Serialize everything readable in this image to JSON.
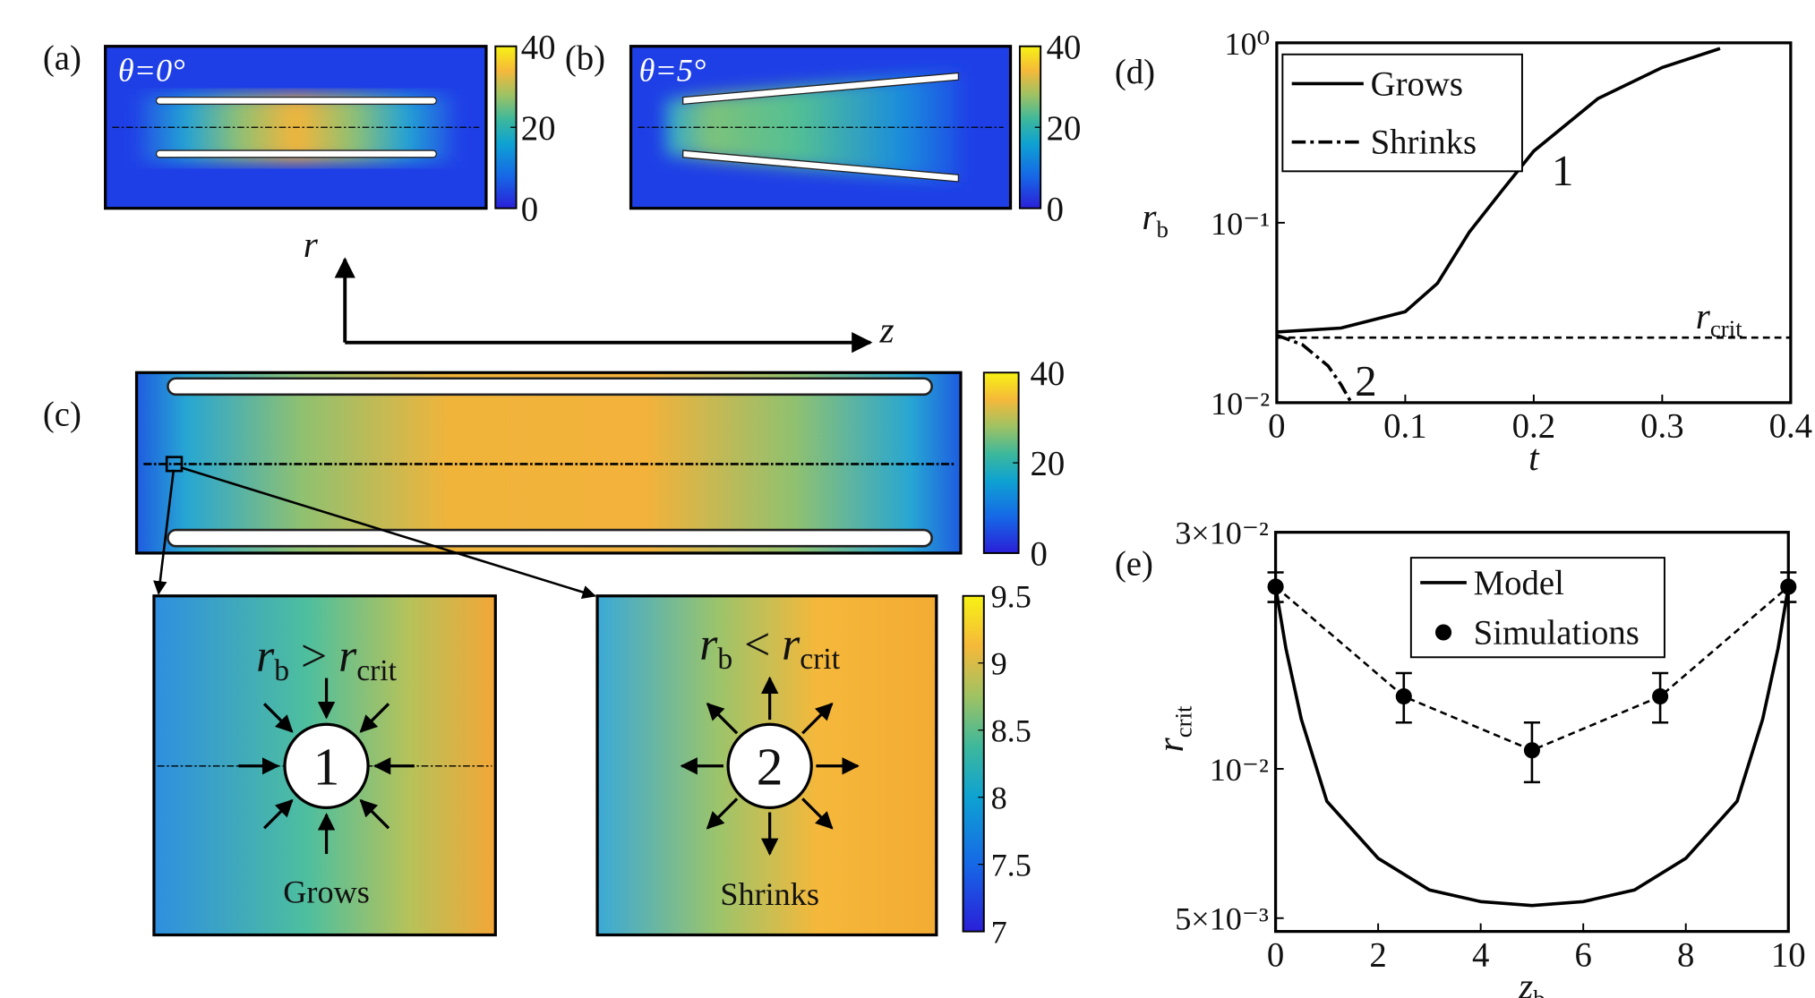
{
  "panels": {
    "a": {
      "label": "(a)",
      "angle": "θ=0°",
      "colorbar_lim": [
        0,
        40
      ],
      "colorbar_ticks": [
        0,
        20,
        40
      ]
    },
    "b": {
      "label": "(b)",
      "angle": "θ=5°",
      "colorbar_lim": [
        0,
        40
      ],
      "colorbar_ticks": [
        0,
        20,
        40
      ]
    },
    "axes": {
      "r": "r",
      "z": "z"
    },
    "c": {
      "label": "(c)",
      "colorbar_lim": [
        0,
        40
      ],
      "colorbar_ticks": [
        0,
        20,
        40
      ]
    },
    "insets": {
      "colorbar_lim": [
        7,
        9.5
      ],
      "colorbar_ticks": [
        7,
        7.5,
        8,
        8.5,
        9,
        9.5
      ],
      "items": [
        {
          "condition": {
            "lhs": {
              "base": "r",
              "sub": "b"
            },
            "op": ">",
            "rhs": {
              "base": "r",
              "sub": "crit"
            }
          },
          "bubble": "1",
          "caption": "Grows"
        },
        {
          "condition": {
            "lhs": {
              "base": "r",
              "sub": "b"
            },
            "op": "<",
            "rhs": {
              "base": "r",
              "sub": "crit"
            }
          },
          "bubble": "2",
          "caption": "Shrinks"
        }
      ]
    }
  },
  "chart_data": [
    {
      "type": "line",
      "panel_label": "(d)",
      "xlabel": "t",
      "ylabel": {
        "base": "r",
        "sub": "b"
      },
      "xlim": [
        0,
        0.4
      ],
      "xticks": [
        0,
        0.1,
        0.2,
        0.3,
        0.4
      ],
      "yscale": "log",
      "ylim": [
        0.01,
        1
      ],
      "yticks": [
        {
          "value": 0.01,
          "label": "10⁻²"
        },
        {
          "value": 0.1,
          "label": "10⁻¹"
        },
        {
          "value": 1,
          "label": "10⁰"
        }
      ],
      "legend": "upper left",
      "series": [
        {
          "name": "Grows",
          "color": "#000000",
          "style": "solid",
          "x": [
            0,
            0.05,
            0.1,
            0.125,
            0.15,
            0.175,
            0.2,
            0.25,
            0.3,
            0.345
          ],
          "values": [
            0.0247,
            0.026,
            0.032,
            0.046,
            0.089,
            0.15,
            0.25,
            0.49,
            0.73,
            0.93
          ]
        },
        {
          "name": "Shrinks",
          "color": "#000000",
          "style": "dashdot",
          "x": [
            0,
            0.02,
            0.04,
            0.05,
            0.058
          ],
          "values": [
            0.0237,
            0.021,
            0.016,
            0.0126,
            0.01
          ]
        }
      ],
      "reference_line": {
        "value": 0.023,
        "style": "dashed",
        "label": {
          "base": "r",
          "sub": "crit"
        }
      },
      "annotations": [
        "1",
        "2"
      ]
    },
    {
      "type": "line",
      "panel_label": "(e)",
      "xlabel": {
        "base": "z",
        "sub": "b"
      },
      "ylabel": {
        "base": "r",
        "sub": "crit"
      },
      "xlim": [
        0,
        10
      ],
      "xticks": [
        0,
        2,
        4,
        6,
        8,
        10
      ],
      "yscale": "log",
      "ylim": [
        0.0047,
        0.03
      ],
      "yticks": [
        {
          "value": 0.005,
          "label": "5×10⁻³"
        },
        {
          "value": 0.01,
          "label": "10⁻²"
        },
        {
          "value": 0.03,
          "label": "3×10⁻²"
        }
      ],
      "legend": "upper center",
      "series": [
        {
          "name": "Model",
          "color": "#000000",
          "style": "solid",
          "x": [
            0,
            0.2,
            0.5,
            1,
            2,
            3,
            4,
            5,
            6,
            7,
            8,
            9,
            9.5,
            9.8,
            10
          ],
          "values": [
            0.0233,
            0.0175,
            0.0126,
            0.0086,
            0.0066,
            0.0057,
            0.0054,
            0.0053,
            0.0054,
            0.0057,
            0.0066,
            0.0086,
            0.0126,
            0.0175,
            0.0233
          ]
        },
        {
          "name": "Simulations",
          "color": "#000000",
          "style": "dashed",
          "marker": "circle",
          "x": [
            0,
            2.5,
            5,
            7.5,
            10
          ],
          "values": [
            0.0233,
            0.014,
            0.0109,
            0.014,
            0.0233
          ],
          "errors": [
            0.0016,
            0.0016,
            0.0015,
            0.0016,
            0.0016
          ]
        }
      ]
    }
  ]
}
